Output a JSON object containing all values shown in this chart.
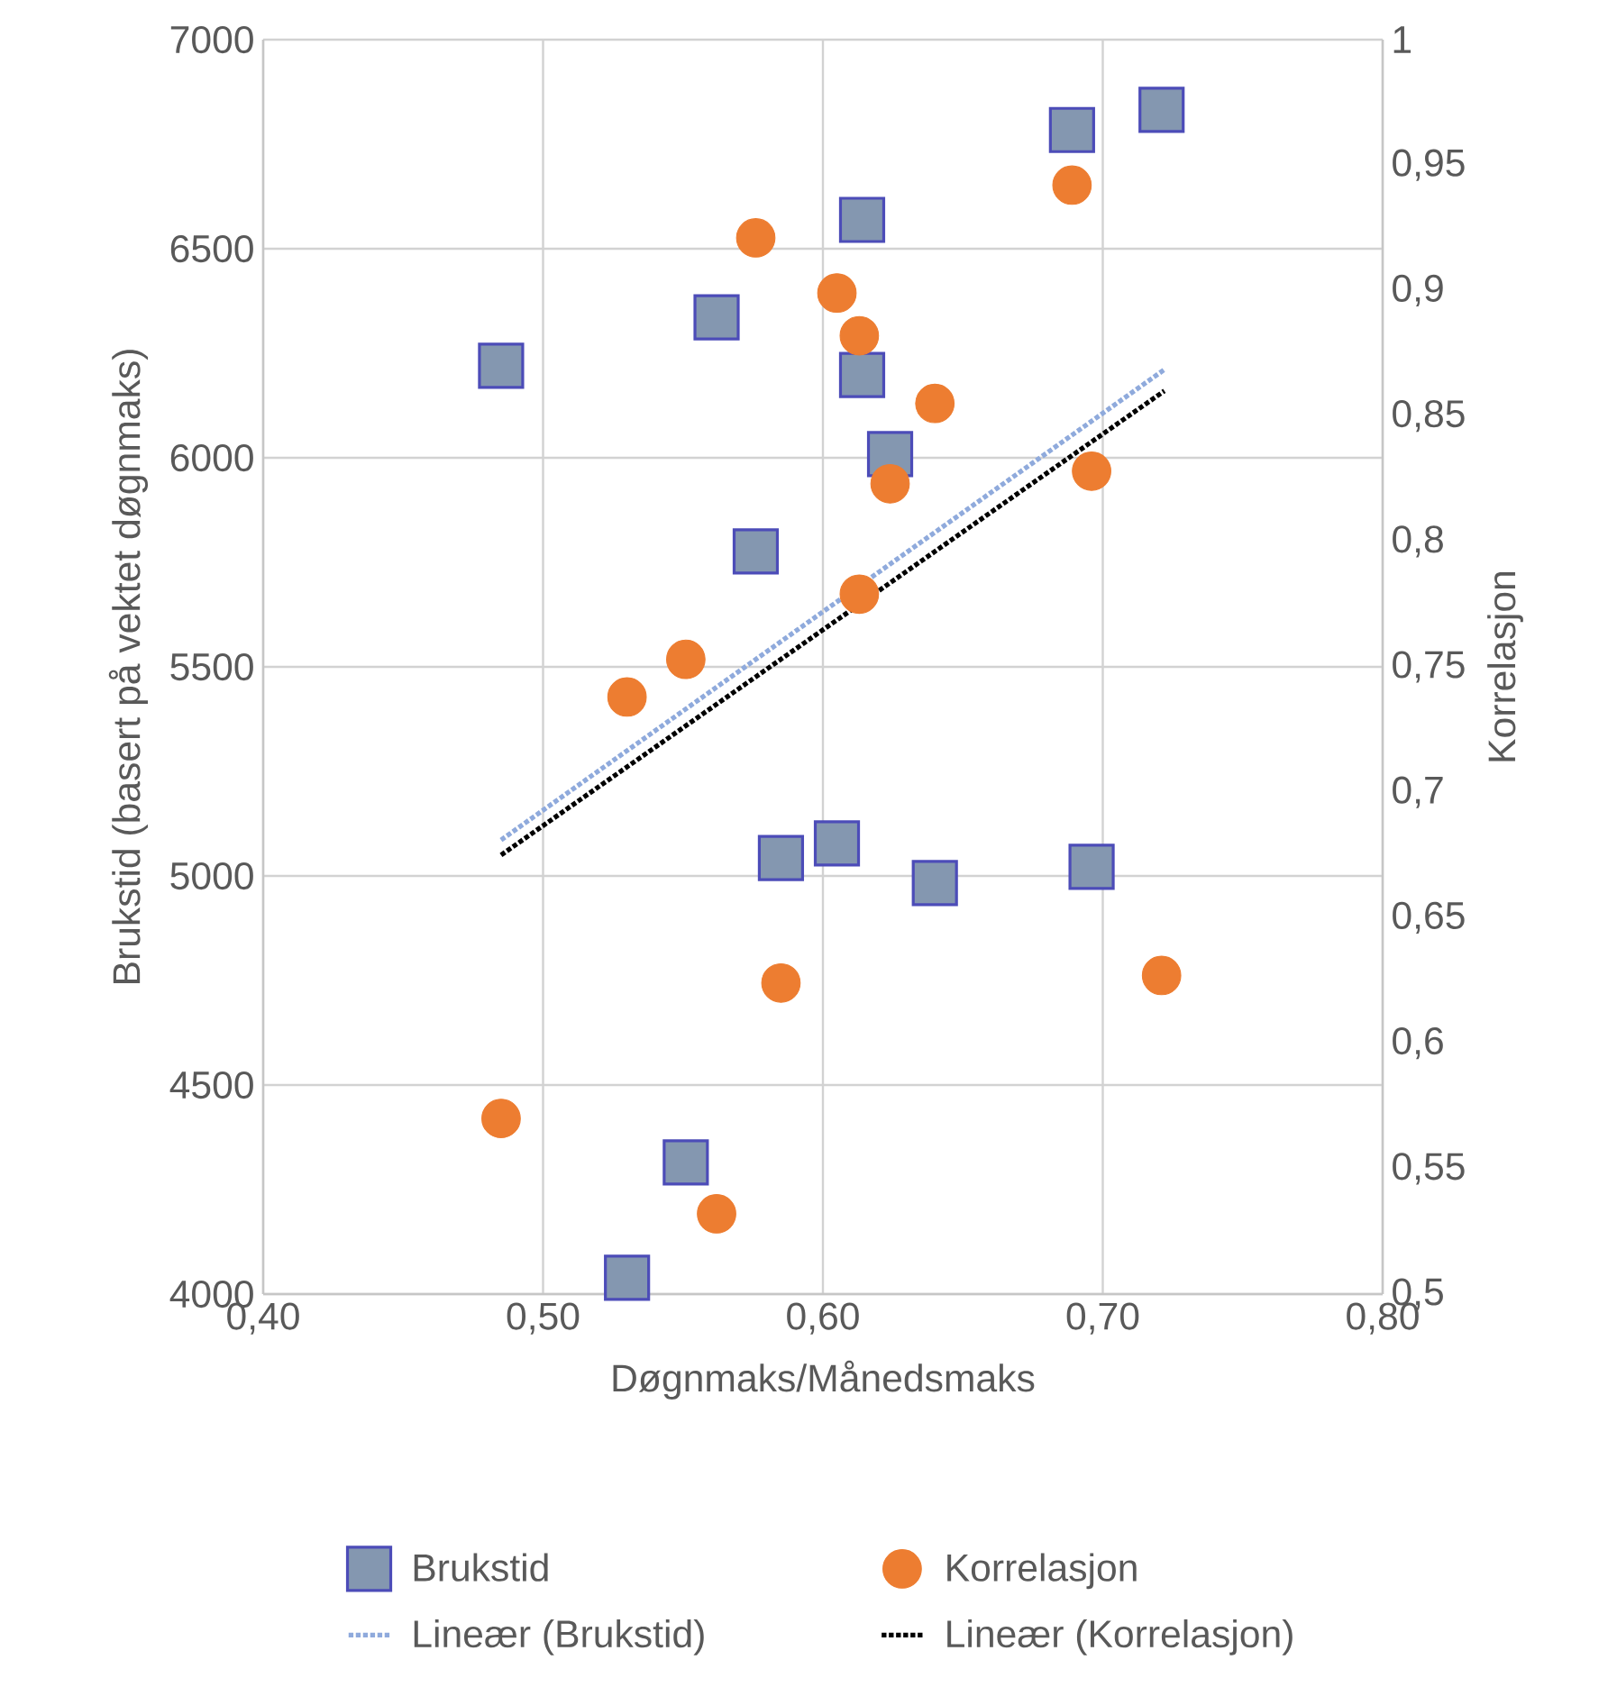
{
  "chart_data": {
    "type": "scatter",
    "xlabel": "Døgnmaks/Månedsmaks",
    "ylabel": "Brukstid (basert på vektet døgnmaks)",
    "y2label": "Korrelasjon",
    "xlim": [
      0.4,
      0.8
    ],
    "xticks": [
      {
        "value": 0.4,
        "label": "0,40"
      },
      {
        "value": 0.5,
        "label": "0,50"
      },
      {
        "value": 0.6,
        "label": "0,60"
      },
      {
        "value": 0.7,
        "label": "0,70"
      },
      {
        "value": 0.8,
        "label": "0,80"
      }
    ],
    "ylim": [
      4000,
      7000
    ],
    "yticks": [
      4000,
      4500,
      5000,
      5500,
      6000,
      6500,
      7000
    ],
    "y2lim": [
      0.5,
      1
    ],
    "y2ticks": [
      {
        "value": 0.5,
        "label": "0,5"
      },
      {
        "value": 0.55,
        "label": "0,55"
      },
      {
        "value": 0.6,
        "label": "0,6"
      },
      {
        "value": 0.65,
        "label": "0,65"
      },
      {
        "value": 0.7,
        "label": "0,7"
      },
      {
        "value": 0.75,
        "label": "0,75"
      },
      {
        "value": 0.8,
        "label": "0,8"
      },
      {
        "value": 0.85,
        "label": "0,85"
      },
      {
        "value": 0.9,
        "label": "0,9"
      },
      {
        "value": 0.95,
        "label": "0,95"
      },
      {
        "value": 1,
        "label": "1"
      }
    ],
    "grid": true,
    "legend": "bottom",
    "series": [
      {
        "name": "Brukstid",
        "marker": "square",
        "color": "#8497b0",
        "x": [
          0.485,
          0.562,
          0.614,
          0.614,
          0.689,
          0.721,
          0.576,
          0.624,
          0.585,
          0.605,
          0.64,
          0.696,
          0.551,
          0.53
        ],
        "values": [
          6220,
          6336,
          6569,
          6198,
          6784,
          6832,
          5776,
          6009,
          5043,
          5078,
          4983,
          5022,
          4315,
          4039
        ]
      },
      {
        "name": "Korrelasjon",
        "marker": "circle",
        "color": "#ed7d31",
        "axis": "y2",
        "x": [
          0.576,
          0.605,
          0.613,
          0.689,
          0.64,
          0.624,
          0.696,
          0.613,
          0.551,
          0.53,
          0.585,
          0.721,
          0.485,
          0.562
        ],
        "values": [
          0.921,
          0.899,
          0.882,
          0.942,
          0.855,
          0.823,
          0.828,
          0.779,
          0.753,
          0.738,
          0.624,
          0.627,
          0.57,
          0.532
        ]
      },
      {
        "name": "Lineær (Brukstid)",
        "type": "line",
        "line_style": "dotted",
        "marker": "none",
        "color": "#8faadc",
        "x": [
          0.485,
          0.722
        ],
        "values": [
          5086,
          6211
        ]
      },
      {
        "name": "Lineær (Korrelasjon)",
        "type": "line",
        "line_style": "dotted",
        "marker": "none",
        "color": "#000000",
        "axis": "y2",
        "x": [
          0.485,
          0.722
        ],
        "values": [
          0.675,
          0.86
        ]
      }
    ]
  }
}
